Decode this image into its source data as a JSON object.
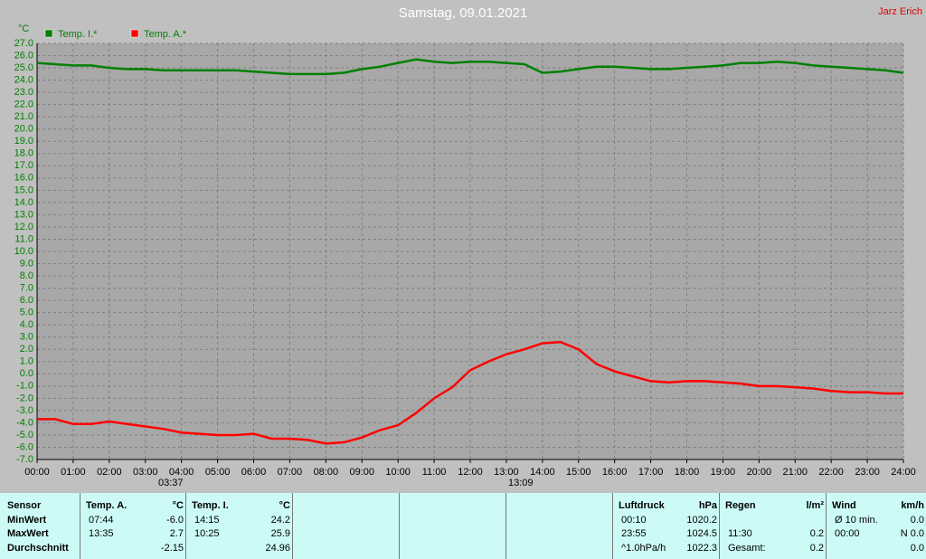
{
  "chart_data": {
    "type": "line",
    "title": "Samstag, 09.01.2021",
    "author": "Jarz Erich",
    "y_label": "°C",
    "x": [
      0,
      0.5,
      1,
      1.5,
      2,
      2.5,
      3,
      3.5,
      4,
      4.5,
      5,
      5.5,
      6,
      6.5,
      7,
      7.5,
      8,
      8.5,
      9,
      9.5,
      10,
      10.5,
      11,
      11.5,
      12,
      12.5,
      13,
      13.5,
      14,
      14.5,
      15,
      15.5,
      16,
      16.5,
      17,
      17.5,
      18,
      18.5,
      19,
      19.5,
      20,
      20.5,
      21,
      21.5,
      22,
      22.5,
      23,
      23.5,
      24
    ],
    "series": [
      {
        "name": "Temp. I.*",
        "color": "#008000",
        "values": [
          25.4,
          25.3,
          25.2,
          25.2,
          25.0,
          24.9,
          24.9,
          24.8,
          24.8,
          24.8,
          24.8,
          24.8,
          24.7,
          24.6,
          24.5,
          24.5,
          24.5,
          24.6,
          24.9,
          25.1,
          25.4,
          25.7,
          25.5,
          25.4,
          25.5,
          25.5,
          25.4,
          25.3,
          24.6,
          24.7,
          24.9,
          25.1,
          25.1,
          25.0,
          24.9,
          24.9,
          25.0,
          25.1,
          25.2,
          25.4,
          25.4,
          25.5,
          25.4,
          25.2,
          25.1,
          25.0,
          24.9,
          24.8,
          24.6
        ]
      },
      {
        "name": "Temp. A.*",
        "color": "#ff0000",
        "values": [
          -3.7,
          -3.7,
          -4.1,
          -4.1,
          -3.9,
          -4.1,
          -4.3,
          -4.5,
          -4.8,
          -4.9,
          -5.0,
          -5.0,
          -4.9,
          -5.3,
          -5.3,
          -5.4,
          -5.7,
          -5.6,
          -5.2,
          -4.6,
          -4.2,
          -3.2,
          -2.0,
          -1.1,
          0.3,
          1.0,
          1.6,
          2.0,
          2.5,
          2.6,
          2.0,
          0.8,
          0.2,
          -0.2,
          -0.6,
          -0.7,
          -0.6,
          -0.6,
          -0.7,
          -0.8,
          -1.0,
          -1.0,
          -1.1,
          -1.2,
          -1.4,
          -1.5,
          -1.5,
          -1.6,
          -1.6
        ]
      }
    ],
    "xlim": [
      0,
      24
    ],
    "xticks": [
      {
        "value": 0,
        "label": "00:00"
      },
      {
        "value": 1,
        "label": "01:00"
      },
      {
        "value": 2,
        "label": "02:00"
      },
      {
        "value": 3,
        "label": "03:00"
      },
      {
        "value": 4,
        "label": "04:00"
      },
      {
        "value": 5,
        "label": "05:00"
      },
      {
        "value": 6,
        "label": "06:00"
      },
      {
        "value": 7,
        "label": "07:00"
      },
      {
        "value": 8,
        "label": "08:00"
      },
      {
        "value": 9,
        "label": "09:00"
      },
      {
        "value": 10,
        "label": "10:00"
      },
      {
        "value": 11,
        "label": "11:00"
      },
      {
        "value": 12,
        "label": "12:00"
      },
      {
        "value": 13,
        "label": "13:00"
      },
      {
        "value": 14,
        "label": "14:00"
      },
      {
        "value": 15,
        "label": "15:00"
      },
      {
        "value": 16,
        "label": "16:00"
      },
      {
        "value": 17,
        "label": "17:00"
      },
      {
        "value": 18,
        "label": "18:00"
      },
      {
        "value": 19,
        "label": "19:00"
      },
      {
        "value": 20,
        "label": "20:00"
      },
      {
        "value": 21,
        "label": "21:00"
      },
      {
        "value": 22,
        "label": "22:00"
      },
      {
        "value": 23,
        "label": "23:00"
      },
      {
        "value": 24,
        "label": "24:00"
      }
    ],
    "ylim": [
      -7,
      27
    ],
    "yticks": [
      {
        "value": -7,
        "label": "-7.0"
      },
      {
        "value": -6,
        "label": "-6.0"
      },
      {
        "value": -5,
        "label": "-5.0"
      },
      {
        "value": -4,
        "label": "-4.0"
      },
      {
        "value": -3,
        "label": "-3.0"
      },
      {
        "value": -2,
        "label": "-2.0"
      },
      {
        "value": -1,
        "label": "-1.0"
      },
      {
        "value": 0,
        "label": "0.0"
      },
      {
        "value": 1,
        "label": "1.0"
      },
      {
        "value": 2,
        "label": "2.0"
      },
      {
        "value": 3,
        "label": "3.0"
      },
      {
        "value": 4,
        "label": "4.0"
      },
      {
        "value": 5,
        "label": "5.0"
      },
      {
        "value": 6,
        "label": "6.0"
      },
      {
        "value": 7,
        "label": "7.0"
      },
      {
        "value": 8,
        "label": "8.0"
      },
      {
        "value": 9,
        "label": "9.0"
      },
      {
        "value": 10,
        "label": "10.0"
      },
      {
        "value": 11,
        "label": "11.0"
      },
      {
        "value": 12,
        "label": "12.0"
      },
      {
        "value": 13,
        "label": "13.0"
      },
      {
        "value": 14,
        "label": "14.0"
      },
      {
        "value": 15,
        "label": "15.0"
      },
      {
        "value": 16,
        "label": "16.0"
      },
      {
        "value": 17,
        "label": "17.0"
      },
      {
        "value": 18,
        "label": "18.0"
      },
      {
        "value": 19,
        "label": "19.0"
      },
      {
        "value": 20,
        "label": "20.0"
      },
      {
        "value": 21,
        "label": "21.0"
      },
      {
        "value": 22,
        "label": "22.0"
      },
      {
        "value": 23,
        "label": "23.0"
      },
      {
        "value": 24,
        "label": "24.0"
      },
      {
        "value": 25,
        "label": "25.0"
      },
      {
        "value": 26,
        "label": "26.0"
      },
      {
        "value": 27,
        "label": "27.0"
      }
    ],
    "grid": true,
    "annotations": [
      "03:37",
      "13:09"
    ]
  },
  "stats": {
    "labels": [
      "Sensor",
      "MinWert",
      "MaxWert",
      "Durchschnitt"
    ],
    "groups": [
      {
        "name": "Temp. A.",
        "unit": "°C",
        "rows": [
          {
            "time": "07:44",
            "value": "-6.0"
          },
          {
            "time": "13:35",
            "value": "2.7"
          },
          {
            "value": "-2.15"
          }
        ]
      },
      {
        "name": "Temp. I.",
        "unit": "°C",
        "rows": [
          {
            "time": "14:15",
            "value": "24.2"
          },
          {
            "time": "10:25",
            "value": "25.9"
          },
          {
            "value": "24.96"
          }
        ]
      },
      {
        "name": "Luftdruck",
        "unit": "hPa",
        "rows": [
          {
            "time": "00:10",
            "value": "1020.2"
          },
          {
            "time": "23:55",
            "value": "1024.5"
          },
          {
            "time": "^1.0hPa/h",
            "value": "1022.3"
          }
        ]
      },
      {
        "name": "Regen",
        "unit": "l/m²",
        "rows": [
          null,
          {
            "time": "11:30",
            "value": "0.2"
          },
          {
            "time": "Gesamt:",
            "value": "0.2"
          }
        ]
      },
      {
        "name": "Wind",
        "unit": "km/h",
        "rows": [
          {
            "time": "Ø 10 min.",
            "value": "0.0"
          },
          {
            "time": "00:00",
            "value": "N 0.0"
          },
          {
            "value": "0.0"
          }
        ]
      }
    ]
  }
}
